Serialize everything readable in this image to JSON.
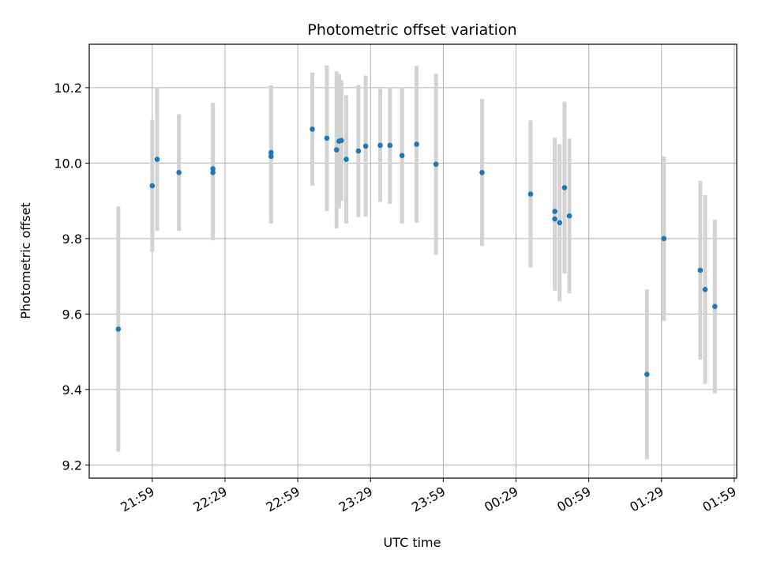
{
  "chart_data": {
    "type": "scatter",
    "title": "Photometric offset variation",
    "xlabel": "UTC time",
    "ylabel": "Photometric offset",
    "x_unit": "UTC time of day (HH:MM, continues past midnight)",
    "xlim": [
      "21:33",
      "02:00"
    ],
    "ylim": [
      9.165,
      10.315
    ],
    "x_ticks": [
      "21:59",
      "22:29",
      "22:59",
      "23:29",
      "23:59",
      "00:29",
      "00:59",
      "01:29",
      "01:59"
    ],
    "y_ticks": [
      9.2,
      9.4,
      9.6,
      9.8,
      10.0,
      10.2
    ],
    "grid": true,
    "point_color": "#1f77b4",
    "errorbar_color": "#d3d3d3",
    "points": [
      {
        "x": "21:45",
        "y": 9.56,
        "err": 0.325
      },
      {
        "x": "21:59",
        "y": 9.94,
        "err": 0.175
      },
      {
        "x": "22:01",
        "y": 10.01,
        "err": 0.19
      },
      {
        "x": "22:10",
        "y": 9.975,
        "err": 0.155
      },
      {
        "x": "22:24",
        "y": 9.985,
        "err": 0.175
      },
      {
        "x": "22:24",
        "y": 9.975,
        "err": 0.18
      },
      {
        "x": "22:48",
        "y": 10.028,
        "err": 0.178
      },
      {
        "x": "22:48",
        "y": 10.018,
        "err": 0.178
      },
      {
        "x": "23:05",
        "y": 10.09,
        "err": 0.15
      },
      {
        "x": "23:11",
        "y": 10.066,
        "err": 0.193
      },
      {
        "x": "23:15",
        "y": 10.035,
        "err": 0.208
      },
      {
        "x": "23:16",
        "y": 10.058,
        "err": 0.178
      },
      {
        "x": "23:17",
        "y": 10.06,
        "err": 0.16
      },
      {
        "x": "23:19",
        "y": 10.01,
        "err": 0.17
      },
      {
        "x": "23:24",
        "y": 10.032,
        "err": 0.175
      },
      {
        "x": "23:27",
        "y": 10.045,
        "err": 0.187
      },
      {
        "x": "23:33",
        "y": 10.047,
        "err": 0.15
      },
      {
        "x": "23:37",
        "y": 10.047,
        "err": 0.155
      },
      {
        "x": "23:42",
        "y": 10.02,
        "err": 0.18
      },
      {
        "x": "23:48",
        "y": 10.05,
        "err": 0.208
      },
      {
        "x": "23:56",
        "y": 9.997,
        "err": 0.24
      },
      {
        "x": "00:15",
        "y": 9.975,
        "err": 0.195
      },
      {
        "x": "00:35",
        "y": 9.918,
        "err": 0.195
      },
      {
        "x": "00:45",
        "y": 9.872,
        "err": 0.195
      },
      {
        "x": "00:45",
        "y": 9.852,
        "err": 0.19
      },
      {
        "x": "00:47",
        "y": 9.842,
        "err": 0.208
      },
      {
        "x": "00:49",
        "y": 9.935,
        "err": 0.228
      },
      {
        "x": "00:51",
        "y": 9.86,
        "err": 0.205
      },
      {
        "x": "01:23",
        "y": 9.44,
        "err": 0.225
      },
      {
        "x": "01:30",
        "y": 9.8,
        "err": 0.218
      },
      {
        "x": "01:45",
        "y": 9.716,
        "err": 0.237
      },
      {
        "x": "01:47",
        "y": 9.665,
        "err": 0.25
      },
      {
        "x": "01:51",
        "y": 9.62,
        "err": 0.23
      }
    ]
  }
}
